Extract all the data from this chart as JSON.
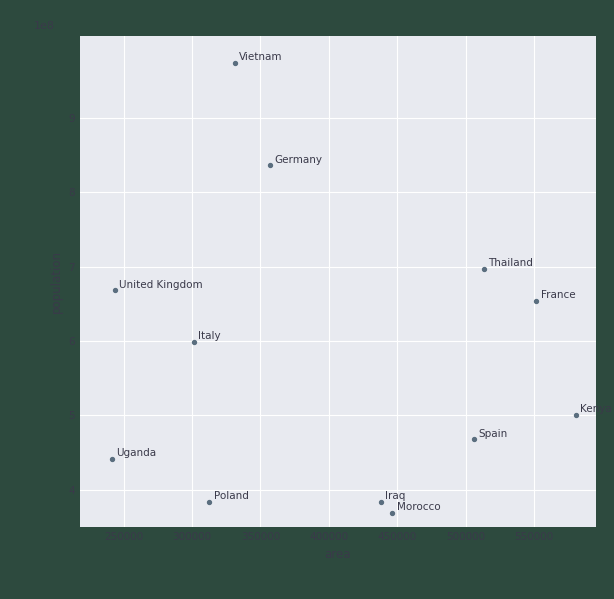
{
  "countries": [
    {
      "name": "Vietnam",
      "area": 331212,
      "population": 97400000.0
    },
    {
      "name": "Germany",
      "area": 357114,
      "population": 83600000.0
    },
    {
      "name": "Thailand",
      "area": 513120,
      "population": 69700000.0
    },
    {
      "name": "United Kingdom",
      "area": 243610,
      "population": 66800000.0
    },
    {
      "name": "France",
      "area": 551695,
      "population": 65400000.0
    },
    {
      "name": "Italy",
      "area": 301340,
      "population": 59900000.0
    },
    {
      "name": "Kenya",
      "area": 580367,
      "population": 50100000.0
    },
    {
      "name": "Spain",
      "area": 505990,
      "population": 46800000.0
    },
    {
      "name": "Uganda",
      "area": 241550,
      "population": 44200000.0
    },
    {
      "name": "Poland",
      "area": 312696,
      "population": 38400000.0
    },
    {
      "name": "Iraq",
      "area": 438317,
      "population": 38400000.0
    },
    {
      "name": "Morocco",
      "area": 446550,
      "population": 36900000.0
    }
  ],
  "xlabel": "area",
  "ylabel": "population",
  "outer_bg": "#2d4a3e",
  "plot_bg": "#e8eaf0",
  "dot_color": "#5a6e7f",
  "dot_size": 8,
  "text_color": "#3a3a4a",
  "font_size": 7.5,
  "grid_color": "#ffffff",
  "xlim": [
    218000,
    595000
  ],
  "ylim": [
    35000000.0,
    101000000.0
  ],
  "xticks": [
    250000,
    300000,
    350000,
    400000,
    450000,
    500000,
    550000
  ],
  "yticks": [
    40000000.0,
    50000000.0,
    60000000.0,
    70000000.0,
    80000000.0,
    90000000.0
  ]
}
